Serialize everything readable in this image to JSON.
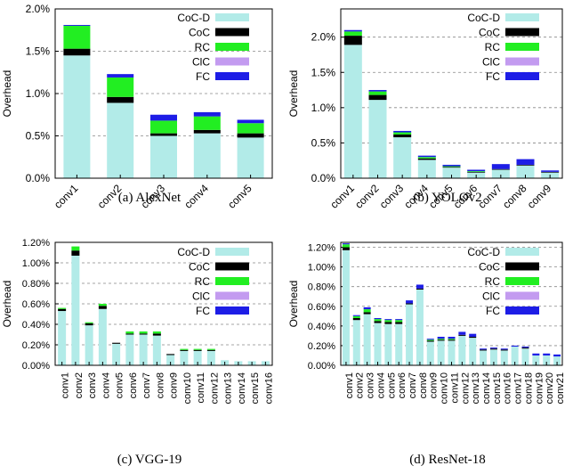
{
  "legend_labels": [
    "CoC-D",
    "CoC",
    "RC",
    "ClC",
    "FC"
  ],
  "colors": {
    "CoC-D": "#b2ebe8",
    "CoC": "#000000",
    "RC": "#22ee22",
    "ClC": "#c39bf0",
    "FC": "#1d1de6",
    "grid": "#888888"
  },
  "chart_data": [
    {
      "type": "bar",
      "stacked": true,
      "caption": "(a)  AlexNet",
      "ylabel": "Overhead",
      "yticks": [
        "0.0%",
        "0.5%",
        "1.0%",
        "1.5%",
        "2.0%"
      ],
      "ylim": [
        0,
        2.0
      ],
      "grid": "horizontal dashed",
      "legend": "top-right",
      "categories": [
        "conv1",
        "conv2",
        "conv3",
        "conv4",
        "conv5"
      ],
      "series": [
        {
          "name": "CoC-D",
          "values": [
            1.45,
            0.89,
            0.5,
            0.53,
            0.48
          ]
        },
        {
          "name": "CoC",
          "values": [
            0.08,
            0.07,
            0.03,
            0.04,
            0.05
          ]
        },
        {
          "name": "RC",
          "values": [
            0.27,
            0.23,
            0.15,
            0.16,
            0.12
          ]
        },
        {
          "name": "ClC",
          "values": [
            0.0,
            0.0,
            0.0,
            0.0,
            0.0
          ]
        },
        {
          "name": "FC",
          "values": [
            0.01,
            0.04,
            0.07,
            0.05,
            0.04
          ]
        }
      ]
    },
    {
      "type": "bar",
      "stacked": true,
      "caption": "(b)  YOLOv2",
      "ylabel": "Overhead",
      "yticks": [
        "0.0%",
        "0.5%",
        "1.0%",
        "1.5%",
        "2.0%"
      ],
      "ylim": [
        0,
        2.4
      ],
      "grid": "horizontal dashed",
      "legend": "top-right",
      "categories": [
        "conv1",
        "conv2",
        "conv3",
        "conv4",
        "conv5",
        "conv6",
        "conv7",
        "conv8",
        "conv9"
      ],
      "series": [
        {
          "name": "CoC-D",
          "values": [
            1.89,
            1.11,
            0.58,
            0.26,
            0.15,
            0.08,
            0.12,
            0.18,
            0.08
          ]
        },
        {
          "name": "CoC",
          "values": [
            0.13,
            0.07,
            0.04,
            0.02,
            0.01,
            0.01,
            0.01,
            0.01,
            0.01
          ]
        },
        {
          "name": "RC",
          "values": [
            0.06,
            0.05,
            0.03,
            0.02,
            0.01,
            0.01,
            0.0,
            0.0,
            0.0
          ]
        },
        {
          "name": "ClC",
          "values": [
            0.0,
            0.0,
            0.0,
            0.0,
            0.0,
            0.0,
            0.0,
            0.0,
            0.0
          ]
        },
        {
          "name": "FC",
          "values": [
            0.02,
            0.02,
            0.02,
            0.02,
            0.02,
            0.02,
            0.07,
            0.08,
            0.02
          ]
        }
      ]
    },
    {
      "type": "bar",
      "stacked": true,
      "caption": "(c)  VGG-19",
      "ylabel": "Overhead",
      "yticks": [
        "0.00%",
        "0.20%",
        "0.40%",
        "0.60%",
        "0.80%",
        "1.00%",
        "1.20%"
      ],
      "ylim": [
        0,
        1.2
      ],
      "grid": "horizontal dashed",
      "legend": "top-right",
      "categories": [
        "conv1",
        "conv2",
        "conv3",
        "conv4",
        "conv5",
        "conv6",
        "conv7",
        "conv8",
        "conv9",
        "conv10",
        "conv11",
        "conv12",
        "conv13",
        "conv14",
        "conv15",
        "conv16"
      ],
      "series": [
        {
          "name": "CoC-D",
          "values": [
            0.53,
            1.07,
            0.39,
            0.55,
            0.21,
            0.3,
            0.3,
            0.29,
            0.1,
            0.14,
            0.14,
            0.14,
            0.05,
            0.04,
            0.04,
            0.04
          ]
        },
        {
          "name": "CoC",
          "values": [
            0.02,
            0.05,
            0.02,
            0.03,
            0.01,
            0.01,
            0.01,
            0.02,
            0.01,
            0.01,
            0.01,
            0.01,
            0.0,
            0.0,
            0.0,
            0.0
          ]
        },
        {
          "name": "RC",
          "values": [
            0.01,
            0.04,
            0.01,
            0.02,
            0.0,
            0.02,
            0.02,
            0.02,
            0.0,
            0.01,
            0.01,
            0.01,
            0.0,
            0.0,
            0.0,
            0.0
          ]
        },
        {
          "name": "ClC",
          "values": [
            0.0,
            0.0,
            0.0,
            0.0,
            0.0,
            0.0,
            0.0,
            0.0,
            0.0,
            0.0,
            0.0,
            0.0,
            0.0,
            0.0,
            0.0,
            0.0
          ]
        },
        {
          "name": "FC",
          "values": [
            0.0,
            0.0,
            0.0,
            0.0,
            0.0,
            0.0,
            0.0,
            0.0,
            0.0,
            0.0,
            0.0,
            0.0,
            0.0,
            0.0,
            0.0,
            0.0
          ]
        }
      ]
    },
    {
      "type": "bar",
      "stacked": true,
      "caption": "(d)  ResNet-18",
      "ylabel": "Overhead",
      "yticks": [
        "0.00%",
        "0.20%",
        "0.40%",
        "0.60%",
        "0.80%",
        "1.00%",
        "1.20%"
      ],
      "ylim": [
        0,
        1.25
      ],
      "grid": "horizontal dashed",
      "legend": "top-right",
      "categories": [
        "conv1",
        "conv2",
        "conv3",
        "conv4",
        "conv5",
        "conv6",
        "conv7",
        "conv8",
        "conv9",
        "conv10",
        "conv11",
        "conv12",
        "conv13",
        "conv14",
        "conv15",
        "conv16",
        "conv17",
        "conv18",
        "conv19",
        "conv20",
        "conv21"
      ],
      "series": [
        {
          "name": "CoC-D",
          "values": [
            1.17,
            0.46,
            0.52,
            0.43,
            0.42,
            0.42,
            0.62,
            0.77,
            0.24,
            0.25,
            0.25,
            0.3,
            0.28,
            0.15,
            0.16,
            0.15,
            0.19,
            0.17,
            0.1,
            0.1,
            0.09
          ]
        },
        {
          "name": "CoC",
          "values": [
            0.03,
            0.02,
            0.02,
            0.02,
            0.02,
            0.02,
            0.01,
            0.01,
            0.01,
            0.01,
            0.01,
            0.01,
            0.01,
            0.01,
            0.01,
            0.01,
            0.0,
            0.01,
            0.0,
            0.0,
            0.0
          ]
        },
        {
          "name": "RC",
          "values": [
            0.03,
            0.02,
            0.03,
            0.02,
            0.02,
            0.02,
            0.0,
            0.0,
            0.01,
            0.01,
            0.01,
            0.0,
            0.0,
            0.0,
            0.0,
            0.0,
            0.0,
            0.0,
            0.0,
            0.0,
            0.0
          ]
        },
        {
          "name": "ClC",
          "values": [
            0.0,
            0.0,
            0.0,
            0.0,
            0.0,
            0.0,
            0.0,
            0.0,
            0.0,
            0.0,
            0.0,
            0.0,
            0.0,
            0.0,
            0.0,
            0.0,
            0.0,
            0.0,
            0.0,
            0.0,
            0.0
          ]
        },
        {
          "name": "FC",
          "values": [
            0.01,
            0.01,
            0.02,
            0.01,
            0.01,
            0.01,
            0.03,
            0.04,
            0.01,
            0.02,
            0.02,
            0.03,
            0.03,
            0.01,
            0.01,
            0.01,
            0.01,
            0.01,
            0.02,
            0.02,
            0.02
          ]
        }
      ]
    }
  ]
}
